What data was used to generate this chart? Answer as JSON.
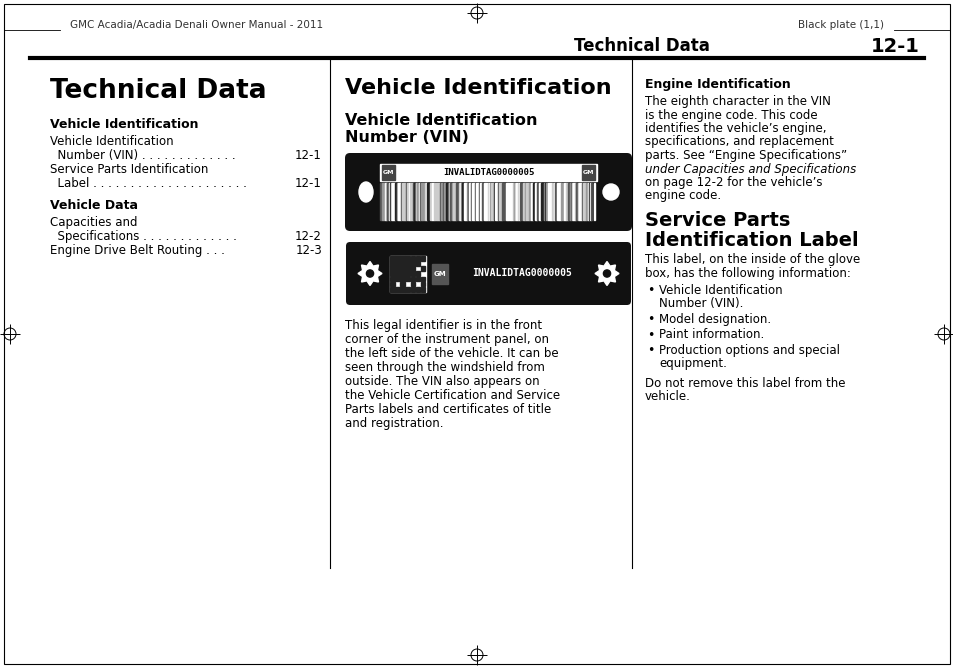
{
  "bg_color": "#ffffff",
  "header_left": "GMC Acadia/Acadia Denali Owner Manual - 2011",
  "header_right": "Black plate (1,1)",
  "section_title": "Technical Data",
  "section_number": "12-1",
  "col1_title": "Technical Data",
  "col1_subtitle1": "Vehicle Identification",
  "col1_items1": [
    [
      "Vehicle Identification",
      ""
    ],
    [
      "  Number (VIN) . . . . . . . . . . . . .",
      "12-1"
    ],
    [
      "Service Parts Identification",
      ""
    ],
    [
      "  Label . . . . . . . . . . . . . . . . . . . . .",
      "12-1"
    ]
  ],
  "col1_subtitle2": "Vehicle Data",
  "col1_items2": [
    [
      "Capacities and",
      ""
    ],
    [
      "  Specifications . . . . . . . . . . . . .",
      "12-2"
    ],
    [
      "Engine Drive Belt Routing . . .",
      "12-3"
    ]
  ],
  "col2_title": "Vehicle Identification",
  "col2_subtitle1": "Vehicle Identification",
  "col2_subtitle2": "Number (VIN)",
  "col2_vin_text": "INVALIDTAG0000005",
  "col2_body": "This legal identifier is in the front\ncorner of the instrument panel, on\nthe left side of the vehicle. It can be\nseen through the windshield from\noutside. The VIN also appears on\nthe Vehicle Certification and Service\nParts labels and certificates of title\nand registration.",
  "col3_subtitle1": "Engine Identification",
  "col3_body1_lines": [
    [
      "The eighth character in the VIN",
      false
    ],
    [
      "is the engine code. This code",
      false
    ],
    [
      "identifies the vehicle’s engine,",
      false
    ],
    [
      "specifications, and replacement",
      false
    ],
    [
      "parts. See “Engine Specifications”",
      false
    ],
    [
      "under Capacities and Specifications",
      true
    ],
    [
      "on page 12-2 for the vehicle’s",
      false
    ],
    [
      "engine code.",
      false
    ]
  ],
  "col3_subtitle2a": "Service Parts",
  "col3_subtitle2b": "Identification Label",
  "col3_body2": "This label, on the inside of the glove\nbox, has the following information:",
  "col3_bullets": [
    [
      "Vehicle Identification",
      "Number (VIN)."
    ],
    [
      "Model designation.",
      ""
    ],
    [
      "Paint information.",
      ""
    ],
    [
      "Production options and special",
      "equipment."
    ]
  ],
  "col3_footer": "Do not remove this label from the\nvehicle."
}
